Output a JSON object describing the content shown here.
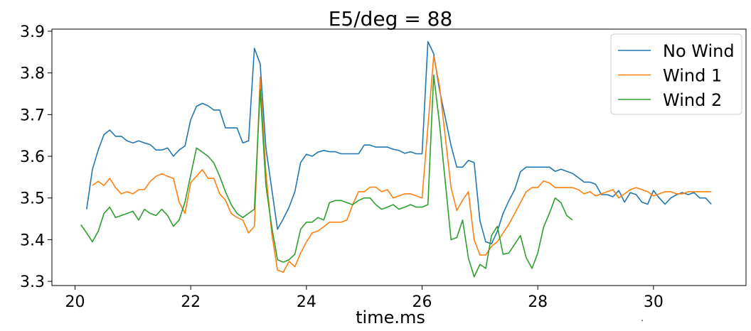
{
  "chart_data": {
    "type": "line",
    "title": "E5/deg = 88",
    "xlabel": "time.ms",
    "ylabel": "",
    "xlim": [
      19.6,
      31.6
    ],
    "ylim": [
      3.29,
      3.905
    ],
    "xticks": [
      20,
      22,
      24,
      26,
      28,
      30
    ],
    "yticks": [
      3.3,
      3.4,
      3.5,
      3.6,
      3.7,
      3.8,
      3.9
    ],
    "xtick_labels": [
      "20",
      "22",
      "24",
      "26",
      "28",
      "30"
    ],
    "ytick_labels": [
      "3.3",
      "3.4",
      "3.5",
      "3.6",
      "3.7",
      "3.8",
      "3.9"
    ],
    "legend_position": "top-right",
    "grid": false,
    "series": [
      {
        "name": "No Wind",
        "color": "#1f77b4",
        "points": [
          [
            20.2,
            3.473
          ],
          [
            20.3,
            3.568
          ],
          [
            20.4,
            3.615
          ],
          [
            20.5,
            3.652
          ],
          [
            20.6,
            3.663
          ],
          [
            20.7,
            3.648
          ],
          [
            20.8,
            3.648
          ],
          [
            20.9,
            3.637
          ],
          [
            21.0,
            3.632
          ],
          [
            21.1,
            3.637
          ],
          [
            21.2,
            3.632
          ],
          [
            21.3,
            3.628
          ],
          [
            21.4,
            3.615
          ],
          [
            21.5,
            3.615
          ],
          [
            21.6,
            3.62
          ],
          [
            21.7,
            3.6
          ],
          [
            21.8,
            3.615
          ],
          [
            21.9,
            3.625
          ],
          [
            22.0,
            3.688
          ],
          [
            22.1,
            3.72
          ],
          [
            22.2,
            3.727
          ],
          [
            22.3,
            3.721
          ],
          [
            22.4,
            3.711
          ],
          [
            22.5,
            3.711
          ],
          [
            22.6,
            3.668
          ],
          [
            22.7,
            3.668
          ],
          [
            22.8,
            3.668
          ],
          [
            22.9,
            3.632
          ],
          [
            23.0,
            3.637
          ],
          [
            23.1,
            3.859
          ],
          [
            23.2,
            3.822
          ],
          [
            23.3,
            3.62
          ],
          [
            23.5,
            3.425
          ],
          [
            23.6,
            3.45
          ],
          [
            23.7,
            3.478
          ],
          [
            23.8,
            3.515
          ],
          [
            23.9,
            3.585
          ],
          [
            24.0,
            3.605
          ],
          [
            24.1,
            3.6
          ],
          [
            24.2,
            3.61
          ],
          [
            24.3,
            3.614
          ],
          [
            24.4,
            3.611
          ],
          [
            24.5,
            3.611
          ],
          [
            24.6,
            3.606
          ],
          [
            24.7,
            3.606
          ],
          [
            24.8,
            3.606
          ],
          [
            24.9,
            3.606
          ],
          [
            25.0,
            3.627
          ],
          [
            25.1,
            3.627
          ],
          [
            25.2,
            3.622
          ],
          [
            25.3,
            3.622
          ],
          [
            25.4,
            3.622
          ],
          [
            25.5,
            3.617
          ],
          [
            25.6,
            3.614
          ],
          [
            25.7,
            3.607
          ],
          [
            25.8,
            3.611
          ],
          [
            25.9,
            3.606
          ],
          [
            26.0,
            3.606
          ],
          [
            26.1,
            3.875
          ],
          [
            26.2,
            3.846
          ],
          [
            26.3,
            3.76
          ],
          [
            26.5,
            3.626
          ],
          [
            26.6,
            3.574
          ],
          [
            26.7,
            3.574
          ],
          [
            26.8,
            3.59
          ],
          [
            26.9,
            3.585
          ],
          [
            27.0,
            3.445
          ],
          [
            27.1,
            3.395
          ],
          [
            27.2,
            3.39
          ],
          [
            27.3,
            3.42
          ],
          [
            27.4,
            3.463
          ],
          [
            27.5,
            3.493
          ],
          [
            27.6,
            3.52
          ],
          [
            27.7,
            3.563
          ],
          [
            27.8,
            3.574
          ],
          [
            27.9,
            3.574
          ],
          [
            28.0,
            3.574
          ],
          [
            28.1,
            3.574
          ],
          [
            28.2,
            3.574
          ],
          [
            28.3,
            3.564
          ],
          [
            28.4,
            3.569
          ],
          [
            28.5,
            3.564
          ],
          [
            28.6,
            3.559
          ],
          [
            28.7,
            3.549
          ],
          [
            28.8,
            3.538
          ],
          [
            28.9,
            3.538
          ],
          [
            29.0,
            3.533
          ],
          [
            29.1,
            3.508
          ],
          [
            29.2,
            3.508
          ],
          [
            29.3,
            3.503
          ],
          [
            29.4,
            3.518
          ],
          [
            29.5,
            3.49
          ],
          [
            29.6,
            3.513
          ],
          [
            29.7,
            3.508
          ],
          [
            29.8,
            3.49
          ],
          [
            29.9,
            3.485
          ],
          [
            30.0,
            3.518
          ],
          [
            30.1,
            3.5
          ],
          [
            30.2,
            3.485
          ],
          [
            30.3,
            3.5
          ],
          [
            30.4,
            3.508
          ],
          [
            30.5,
            3.513
          ],
          [
            30.6,
            3.508
          ],
          [
            30.7,
            3.513
          ],
          [
            30.8,
            3.5
          ],
          [
            30.9,
            3.5
          ],
          [
            31.0,
            3.485
          ]
        ]
      },
      {
        "name": "Wind 1",
        "color": "#ff7f0e",
        "points": [
          [
            20.3,
            3.53
          ],
          [
            20.4,
            3.54
          ],
          [
            20.5,
            3.53
          ],
          [
            20.6,
            3.547
          ],
          [
            20.7,
            3.525
          ],
          [
            20.8,
            3.51
          ],
          [
            20.9,
            3.515
          ],
          [
            21.0,
            3.51
          ],
          [
            21.1,
            3.52
          ],
          [
            21.2,
            3.52
          ],
          [
            21.3,
            3.54
          ],
          [
            21.4,
            3.552
          ],
          [
            21.5,
            3.558
          ],
          [
            21.6,
            3.552
          ],
          [
            21.7,
            3.547
          ],
          [
            21.8,
            3.49
          ],
          [
            21.9,
            3.463
          ],
          [
            22.0,
            3.537
          ],
          [
            22.1,
            3.552
          ],
          [
            22.2,
            3.568
          ],
          [
            22.3,
            3.547
          ],
          [
            22.4,
            3.547
          ],
          [
            22.5,
            3.51
          ],
          [
            22.6,
            3.495
          ],
          [
            22.7,
            3.463
          ],
          [
            22.8,
            3.453
          ],
          [
            22.9,
            3.447
          ],
          [
            23.0,
            3.416
          ],
          [
            23.1,
            3.432
          ],
          [
            23.2,
            3.79
          ],
          [
            23.3,
            3.56
          ],
          [
            23.4,
            3.415
          ],
          [
            23.5,
            3.327
          ],
          [
            23.6,
            3.322
          ],
          [
            23.7,
            3.348
          ],
          [
            23.8,
            3.335
          ],
          [
            23.9,
            3.368
          ],
          [
            24.0,
            3.395
          ],
          [
            24.1,
            3.416
          ],
          [
            24.2,
            3.421
          ],
          [
            24.3,
            3.431
          ],
          [
            24.4,
            3.442
          ],
          [
            24.5,
            3.442
          ],
          [
            24.6,
            3.442
          ],
          [
            24.7,
            3.447
          ],
          [
            24.8,
            3.484
          ],
          [
            24.9,
            3.515
          ],
          [
            25.0,
            3.515
          ],
          [
            25.1,
            3.526
          ],
          [
            25.2,
            3.526
          ],
          [
            25.3,
            3.515
          ],
          [
            25.4,
            3.52
          ],
          [
            25.5,
            3.5
          ],
          [
            25.6,
            3.505
          ],
          [
            25.7,
            3.51
          ],
          [
            25.8,
            3.51
          ],
          [
            25.9,
            3.505
          ],
          [
            26.0,
            3.5
          ],
          [
            26.2,
            3.84
          ],
          [
            26.3,
            3.77
          ],
          [
            26.5,
            3.525
          ],
          [
            26.6,
            3.47
          ],
          [
            26.7,
            3.495
          ],
          [
            26.8,
            3.515
          ],
          [
            26.9,
            3.4
          ],
          [
            27.0,
            3.363
          ],
          [
            27.1,
            3.363
          ],
          [
            27.2,
            3.384
          ],
          [
            27.3,
            3.395
          ],
          [
            27.4,
            3.416
          ],
          [
            27.5,
            3.437
          ],
          [
            27.6,
            3.463
          ],
          [
            27.7,
            3.489
          ],
          [
            27.8,
            3.515
          ],
          [
            27.9,
            3.525
          ],
          [
            28.0,
            3.525
          ],
          [
            28.1,
            3.541
          ],
          [
            28.2,
            3.536
          ],
          [
            28.3,
            3.525
          ],
          [
            28.4,
            3.525
          ],
          [
            28.5,
            3.525
          ],
          [
            28.6,
            3.525
          ],
          [
            28.7,
            3.52
          ],
          [
            28.8,
            3.51
          ],
          [
            28.9,
            3.515
          ],
          [
            29.0,
            3.505
          ],
          [
            29.1,
            3.51
          ],
          [
            29.2,
            3.515
          ],
          [
            29.3,
            3.52
          ],
          [
            29.4,
            3.5
          ],
          [
            29.5,
            3.51
          ],
          [
            29.6,
            3.52
          ],
          [
            29.7,
            3.525
          ],
          [
            29.8,
            3.52
          ],
          [
            29.9,
            3.515
          ],
          [
            30.0,
            3.505
          ],
          [
            30.1,
            3.51
          ],
          [
            30.2,
            3.515
          ],
          [
            30.3,
            3.515
          ],
          [
            30.4,
            3.51
          ],
          [
            30.5,
            3.51
          ],
          [
            30.6,
            3.515
          ],
          [
            30.7,
            3.515
          ],
          [
            30.8,
            3.515
          ],
          [
            30.9,
            3.515
          ],
          [
            31.0,
            3.515
          ]
        ]
      },
      {
        "name": "Wind 2",
        "color": "#2ca02c",
        "points": [
          [
            20.1,
            3.436
          ],
          [
            20.2,
            3.416
          ],
          [
            20.3,
            3.395
          ],
          [
            20.4,
            3.42
          ],
          [
            20.5,
            3.463
          ],
          [
            20.6,
            3.478
          ],
          [
            20.7,
            3.453
          ],
          [
            20.8,
            3.458
          ],
          [
            20.9,
            3.463
          ],
          [
            21.0,
            3.468
          ],
          [
            21.1,
            3.447
          ],
          [
            21.2,
            3.473
          ],
          [
            21.3,
            3.463
          ],
          [
            21.4,
            3.458
          ],
          [
            21.5,
            3.473
          ],
          [
            21.6,
            3.458
          ],
          [
            21.7,
            3.432
          ],
          [
            21.8,
            3.447
          ],
          [
            21.9,
            3.49
          ],
          [
            22.0,
            3.555
          ],
          [
            22.1,
            3.62
          ],
          [
            22.2,
            3.61
          ],
          [
            22.3,
            3.6
          ],
          [
            22.4,
            3.584
          ],
          [
            22.5,
            3.552
          ],
          [
            22.6,
            3.515
          ],
          [
            22.7,
            3.484
          ],
          [
            22.8,
            3.463
          ],
          [
            22.9,
            3.453
          ],
          [
            23.0,
            3.463
          ],
          [
            23.1,
            3.473
          ],
          [
            23.2,
            3.76
          ],
          [
            23.3,
            3.53
          ],
          [
            23.4,
            3.43
          ],
          [
            23.5,
            3.352
          ],
          [
            23.6,
            3.346
          ],
          [
            23.7,
            3.352
          ],
          [
            23.8,
            3.365
          ],
          [
            23.9,
            3.425
          ],
          [
            24.0,
            3.442
          ],
          [
            24.1,
            3.442
          ],
          [
            24.2,
            3.453
          ],
          [
            24.3,
            3.447
          ],
          [
            24.4,
            3.489
          ],
          [
            24.5,
            3.494
          ],
          [
            24.6,
            3.494
          ],
          [
            24.7,
            3.489
          ],
          [
            24.8,
            3.484
          ],
          [
            24.9,
            3.494
          ],
          [
            25.0,
            3.5
          ],
          [
            25.1,
            3.5
          ],
          [
            25.2,
            3.484
          ],
          [
            25.3,
            3.473
          ],
          [
            25.4,
            3.478
          ],
          [
            25.5,
            3.484
          ],
          [
            25.6,
            3.473
          ],
          [
            25.7,
            3.478
          ],
          [
            25.8,
            3.484
          ],
          [
            25.9,
            3.478
          ],
          [
            26.0,
            3.478
          ],
          [
            26.1,
            3.484
          ],
          [
            26.2,
            3.795
          ],
          [
            26.3,
            3.68
          ],
          [
            26.5,
            3.4
          ],
          [
            26.6,
            3.405
          ],
          [
            26.7,
            3.447
          ],
          [
            26.8,
            3.356
          ],
          [
            26.9,
            3.311
          ],
          [
            27.0,
            3.341
          ],
          [
            27.1,
            3.331
          ],
          [
            27.2,
            3.41
          ],
          [
            27.3,
            3.432
          ],
          [
            27.4,
            3.365
          ],
          [
            27.5,
            3.368
          ],
          [
            27.6,
            3.389
          ],
          [
            27.7,
            3.41
          ],
          [
            27.8,
            3.357
          ],
          [
            27.9,
            3.331
          ],
          [
            28.0,
            3.368
          ],
          [
            28.1,
            3.43
          ],
          [
            28.2,
            3.463
          ],
          [
            28.3,
            3.5
          ],
          [
            28.4,
            3.489
          ],
          [
            28.5,
            3.458
          ],
          [
            28.6,
            3.447
          ]
        ]
      }
    ]
  },
  "footnote": "."
}
